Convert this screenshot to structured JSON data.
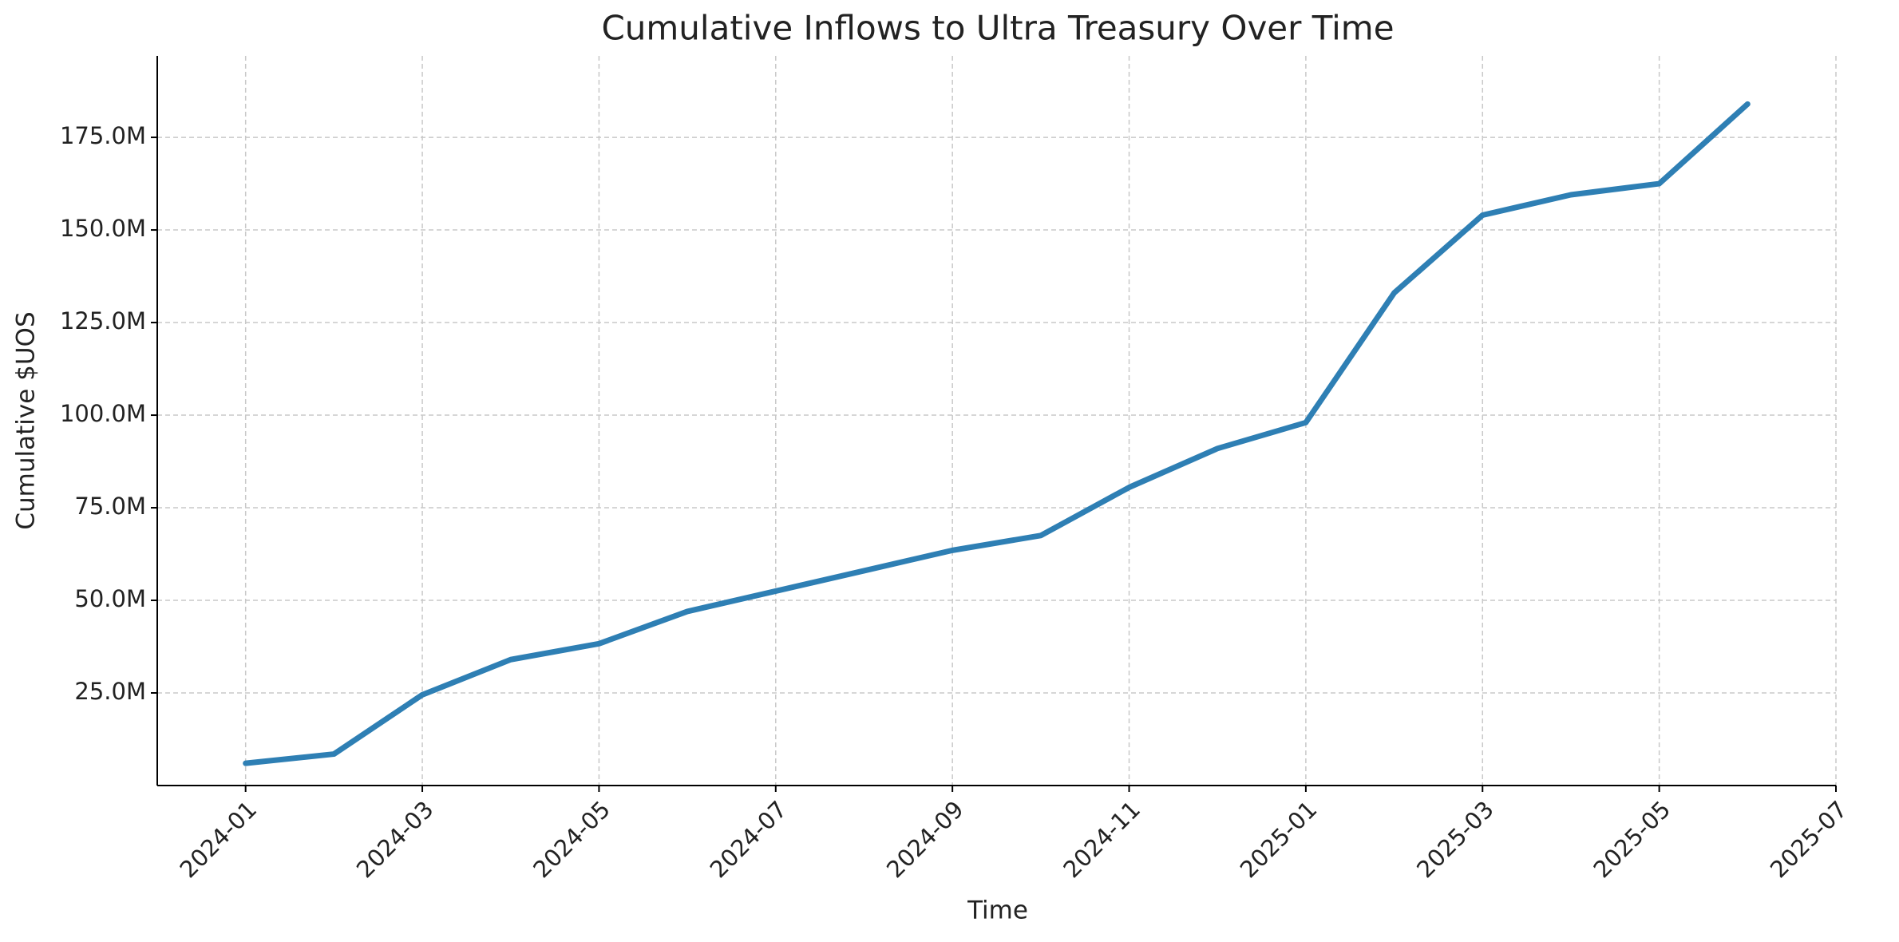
{
  "chart_data": {
    "type": "line",
    "title": "Cumulative Inflows to Ultra Treasury Over Time",
    "x_label": "Time",
    "y_label": "Cumulative $UOS",
    "x": [
      "2024-01",
      "2024-02",
      "2024-03",
      "2024-04",
      "2024-05",
      "2024-06",
      "2024-07",
      "2024-08",
      "2024-09",
      "2024-10",
      "2024-11",
      "2024-12",
      "2025-01",
      "2025-02",
      "2025-03",
      "2025-04",
      "2025-05",
      "2025-06"
    ],
    "series": [
      {
        "name": "Cumulative $UOS",
        "color": "#2e7fb4",
        "values": [
          6000000,
          8500000,
          24500000,
          34000000,
          38300000,
          47000000,
          52500000,
          58000000,
          63500000,
          67500000,
          80500000,
          91000000,
          98000000,
          133000000,
          154000000,
          159500000,
          162500000,
          184000000
        ]
      }
    ],
    "xlim": [
      "2023-12",
      "2025-07"
    ],
    "xticks": [
      "2024-01",
      "2024-03",
      "2024-05",
      "2024-07",
      "2024-09",
      "2024-11",
      "2025-01",
      "2025-03",
      "2025-05",
      "2025-07"
    ],
    "ylim": [
      0,
      197000000
    ],
    "yticks": [
      {
        "value": 25000000,
        "label": "25.0M"
      },
      {
        "value": 50000000,
        "label": "50.0M"
      },
      {
        "value": 75000000,
        "label": "75.0M"
      },
      {
        "value": 100000000,
        "label": "100.0M"
      },
      {
        "value": 125000000,
        "label": "125.0M"
      },
      {
        "value": 150000000,
        "label": "150.0M"
      },
      {
        "value": 175000000,
        "label": "175.0M"
      }
    ],
    "grid": true
  }
}
